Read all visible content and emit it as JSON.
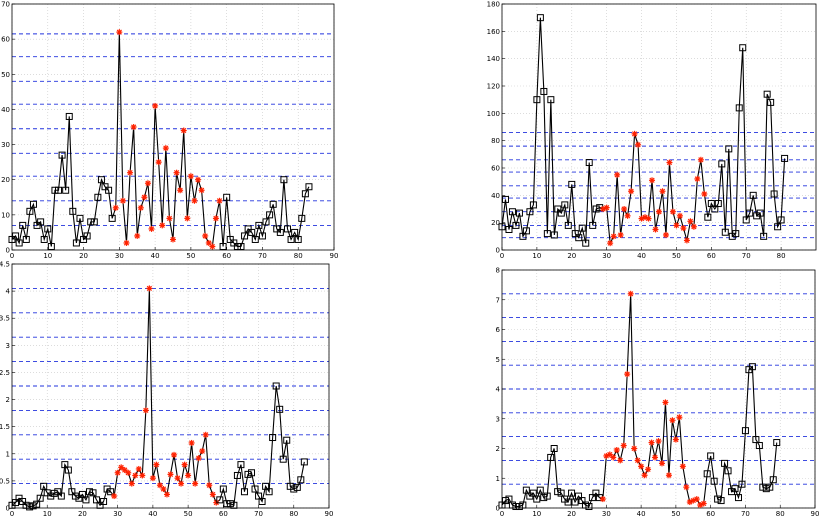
{
  "chart_data": [
    {
      "type": "line",
      "title": "",
      "xlabel": "",
      "ylabel": "",
      "xlim": [
        0,
        90
      ],
      "ylim": [
        0,
        70
      ],
      "xticks": [
        0,
        10,
        20,
        30,
        40,
        50,
        60,
        70,
        80,
        90
      ],
      "yticks": [
        0,
        10,
        20,
        30,
        40,
        50,
        60,
        70
      ],
      "grid": true,
      "thresholds": [
        7,
        14,
        21,
        27.5,
        34.5,
        41.5,
        48,
        55,
        61.5
      ],
      "red_range": [
        29,
        58
      ],
      "x_start": 0,
      "values": [
        3,
        4,
        2,
        7,
        3,
        11,
        13,
        7,
        8,
        3,
        6,
        1,
        17,
        17,
        27,
        17,
        38,
        11,
        2,
        9,
        3,
        4,
        8,
        8,
        15,
        20,
        18,
        17,
        9,
        12,
        62,
        14,
        2,
        22,
        35,
        4,
        12,
        15,
        19,
        6,
        41,
        25,
        7,
        29,
        9,
        3,
        22,
        17,
        34,
        9,
        21,
        14,
        20,
        17,
        4,
        2,
        1,
        9,
        14,
        1,
        15,
        3,
        2,
        1,
        1,
        4,
        6,
        5,
        3,
        7,
        4,
        8,
        10,
        13,
        6,
        5,
        20,
        6,
        3,
        5,
        3,
        9,
        16,
        18
      ]
    },
    {
      "type": "line",
      "title": "",
      "xlabel": "",
      "ylabel": "",
      "xlim": [
        0,
        90
      ],
      "ylim": [
        0,
        180
      ],
      "xticks": [
        0,
        10,
        20,
        30,
        40,
        50,
        60,
        70,
        80
      ],
      "yticks": [
        0,
        20,
        40,
        60,
        80,
        100,
        120,
        140,
        160,
        180
      ],
      "grid": true,
      "thresholds": [
        9,
        18,
        28,
        38,
        47,
        57,
        66,
        76,
        86
      ],
      "red_range": [
        29,
        58
      ],
      "x_start": 0,
      "values": [
        17,
        37,
        15,
        28,
        18,
        27,
        10,
        14,
        28,
        33,
        110,
        170,
        116,
        12,
        110,
        11,
        30,
        27,
        33,
        18,
        48,
        12,
        9,
        16,
        5,
        64,
        18,
        30,
        31,
        30,
        31,
        5,
        10,
        55,
        11,
        30,
        25,
        43,
        85,
        77,
        23,
        24,
        23,
        51,
        15,
        28,
        43,
        11,
        64,
        28,
        18,
        25,
        16,
        7,
        21,
        17,
        52,
        66,
        41,
        24,
        34,
        30,
        34,
        63,
        13,
        74,
        10,
        12,
        104,
        148,
        22,
        27,
        40,
        25,
        27,
        10,
        114,
        108,
        41,
        17,
        22,
        67
      ]
    },
    {
      "type": "line",
      "title": "",
      "xlabel": "",
      "ylabel": "",
      "xlim": [
        0,
        90
      ],
      "ylim": [
        0,
        4.5
      ],
      "xticks": [
        0,
        10,
        20,
        30,
        40,
        50,
        60,
        70,
        80,
        90
      ],
      "yticks": [
        0,
        0.5,
        1,
        1.5,
        2,
        2.5,
        3,
        3.5,
        4,
        4.5
      ],
      "grid": true,
      "thresholds": [
        0.45,
        0.9,
        1.35,
        1.8,
        2.25,
        2.7,
        3.15,
        3.6,
        4.05
      ],
      "red_range": [
        29,
        58
      ],
      "x_start": 0,
      "values": [
        0.05,
        0.1,
        0.18,
        0.12,
        0.05,
        0.02,
        0.04,
        0.07,
        0.18,
        0.4,
        0.28,
        0.22,
        0.27,
        0.3,
        0.22,
        0.8,
        0.7,
        0.3,
        0.22,
        0.18,
        0.25,
        0.15,
        0.3,
        0.28,
        0.15,
        0.05,
        0.12,
        0.35,
        0.3,
        0.22,
        0.65,
        0.75,
        0.7,
        0.65,
        0.45,
        0.6,
        0.72,
        0.6,
        1.8,
        4.05,
        0.55,
        0.8,
        0.42,
        0.35,
        0.25,
        0.62,
        0.98,
        0.55,
        0.45,
        0.8,
        0.6,
        1.2,
        0.45,
        0.92,
        1.05,
        1.35,
        0.42,
        0.25,
        0.1,
        0.15,
        0.35,
        0.08,
        0.08,
        0.05,
        0.6,
        0.8,
        0.3,
        0.62,
        0.65,
        0.35,
        0.22,
        0.12,
        0.4,
        0.3,
        1.3,
        2.25,
        1.82,
        0.9,
        1.25,
        0.4,
        0.35,
        0.38,
        0.52,
        0.85
      ]
    },
    {
      "type": "line",
      "title": "",
      "xlabel": "",
      "ylabel": "",
      "xlim": [
        0,
        90
      ],
      "ylim": [
        0,
        8
      ],
      "xticks": [
        0,
        10,
        20,
        30,
        40,
        50,
        60,
        70,
        80,
        90
      ],
      "yticks": [
        0,
        1,
        2,
        3,
        4,
        5,
        6,
        7,
        8
      ],
      "grid": true,
      "thresholds": [
        0.8,
        1.6,
        2.4,
        3.2,
        4.0,
        4.8,
        5.6,
        6.4,
        7.2
      ],
      "red_range": [
        29,
        58
      ],
      "x_start": 0,
      "values": [
        0.1,
        0.25,
        0.3,
        0.1,
        0.05,
        0.05,
        0.1,
        0.6,
        0.4,
        0.5,
        0.3,
        0.6,
        0.35,
        0.4,
        1.7,
        2.0,
        0.55,
        0.5,
        0.3,
        0.2,
        0.5,
        0.2,
        0.4,
        0.25,
        0.1,
        0.05,
        0.35,
        0.5,
        0.35,
        0.3,
        1.75,
        1.8,
        1.7,
        1.95,
        1.6,
        2.1,
        4.5,
        7.2,
        2.0,
        1.6,
        1.4,
        1.1,
        1.3,
        2.2,
        1.7,
        2.25,
        1.5,
        3.55,
        1.1,
        2.95,
        2.3,
        3.05,
        1.4,
        0.7,
        0.2,
        0.25,
        0.3,
        0.1,
        0.15,
        1.15,
        1.75,
        0.9,
        0.3,
        0.25,
        1.5,
        1.25,
        0.55,
        0.65,
        0.35,
        0.8,
        2.6,
        4.65,
        4.75,
        2.3,
        2.1,
        0.7,
        0.65,
        0.7,
        0.95,
        2.2
      ]
    }
  ]
}
